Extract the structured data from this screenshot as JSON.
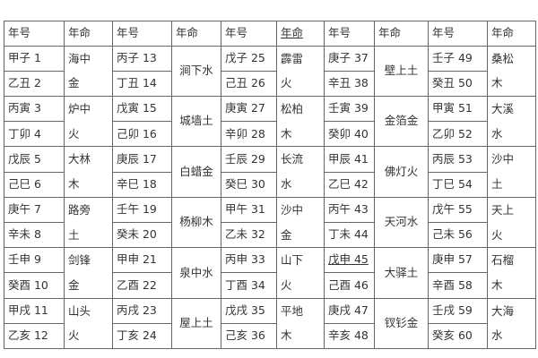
{
  "headers": [
    "年号",
    "年命",
    "年号",
    "年命",
    "年号",
    "年命",
    "年号",
    "年命",
    "年号",
    "年命"
  ],
  "groups": [
    {
      "style": "split",
      "years": [
        "甲子 1",
        "乙丑 2",
        "丙寅 3",
        "丁卯 4",
        "戊辰 5",
        "己巳 6",
        "庚午 7",
        "辛未 8",
        "壬申 9",
        "癸酉 10",
        "甲戌 11",
        "乙亥 12"
      ],
      "nayin": [
        [
          "海中",
          "金"
        ],
        [
          "炉中",
          "火"
        ],
        [
          "大林",
          "木"
        ],
        [
          "路旁",
          "土"
        ],
        [
          "剑锋",
          "金"
        ],
        [
          "山头",
          "火"
        ]
      ]
    },
    {
      "style": "merged",
      "years": [
        "丙子 13",
        "丁丑 14",
        "戊寅 15",
        "己卯 16",
        "庚辰 17",
        "辛巳 18",
        "壬午  19",
        "癸未  20",
        "甲申 21",
        "乙酉 22",
        "丙戌 23",
        "丁亥 24"
      ],
      "nayin": [
        [
          "涧下水"
        ],
        [
          "城墙土"
        ],
        [
          "白蜡金"
        ],
        [
          "杨柳木"
        ],
        [
          "泉中水"
        ],
        [
          "屋上土"
        ]
      ]
    },
    {
      "style": "split",
      "years": [
        "戊子 25",
        "己丑 26",
        "庚寅 27",
        "辛卯 28",
        "壬辰 29",
        "癸巳 30",
        "甲午 31",
        "乙未 32",
        "丙申 33",
        "丁酉 34",
        "戊戌 35",
        "己亥 36"
      ],
      "nayin": [
        [
          "霹雷",
          "火"
        ],
        [
          "松柏",
          "木"
        ],
        [
          "长流",
          "水"
        ],
        [
          "沙中",
          "金"
        ],
        [
          "山下",
          "火"
        ],
        [
          "平地",
          "木"
        ]
      ]
    },
    {
      "style": "merged",
      "years": [
        "庚子 37",
        "辛丑 38",
        "壬寅 39",
        "癸卯 40",
        "甲辰 41",
        "乙巳 42",
        "丙午 43",
        "丁未 44",
        "戊申 45",
        "己酉 46",
        "庚戌 47",
        "辛亥 48"
      ],
      "nayin": [
        [
          "壁上土"
        ],
        [
          "金箔金"
        ],
        [
          "佛灯火"
        ],
        [
          "天河水"
        ],
        [
          "大驿土"
        ],
        [
          "钗钐金"
        ]
      ]
    },
    {
      "style": "split",
      "years": [
        "壬子 49",
        "癸丑 50",
        "甲寅 51",
        "乙卯 52",
        "丙辰 53",
        "丁巳 54",
        "戊午 55",
        "己未 56",
        "庚申 57",
        "辛酉 58",
        "壬戌 59",
        "癸亥 60"
      ],
      "nayin": [
        [
          "桑松",
          "木"
        ],
        [
          "大溪",
          "水"
        ],
        [
          "沙中",
          "土"
        ],
        [
          "天上",
          "火"
        ],
        [
          "石榴",
          "木"
        ],
        [
          "大海",
          "水"
        ]
      ]
    }
  ]
}
